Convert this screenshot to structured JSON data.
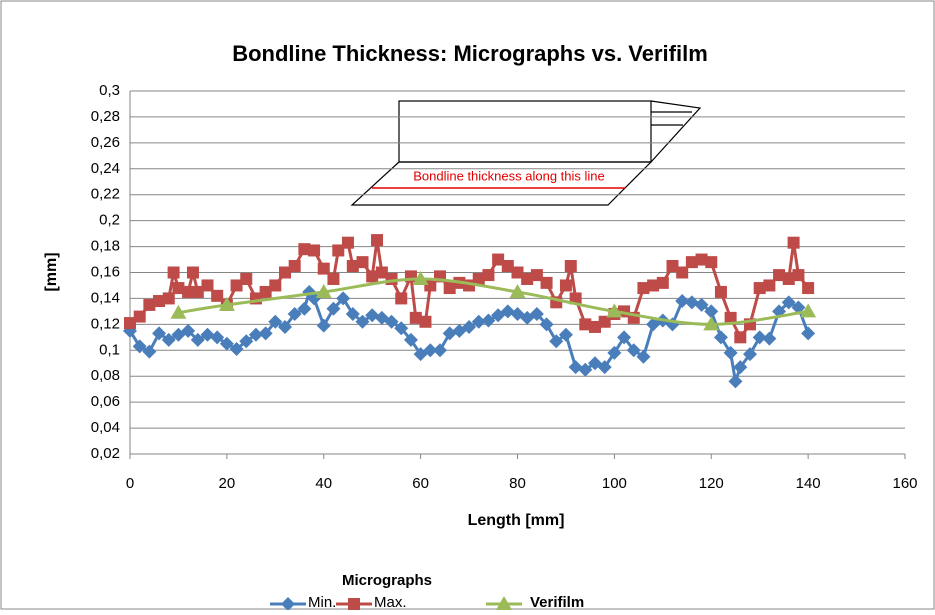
{
  "chart_data": {
    "type": "line",
    "title": "Bondline Thickness: Micrographs vs. Verifilm",
    "x_label": "Length [mm]",
    "y_label": "[mm]",
    "annotation": "Bondline thickness along this line",
    "legend_title": "Micrographs",
    "xlim": [
      0,
      160
    ],
    "xticks": [
      0,
      20,
      40,
      60,
      80,
      100,
      120,
      140,
      160
    ],
    "ylim": [
      0.02,
      0.3
    ],
    "yticks": [
      {
        "value": 0.02,
        "label": "0,02"
      },
      {
        "value": 0.04,
        "label": "0,04"
      },
      {
        "value": 0.06,
        "label": "0,06"
      },
      {
        "value": 0.08,
        "label": "0,08"
      },
      {
        "value": 0.1,
        "label": "0,1"
      },
      {
        "value": 0.12,
        "label": "0,12"
      },
      {
        "value": 0.14,
        "label": "0,14"
      },
      {
        "value": 0.16,
        "label": "0,16"
      },
      {
        "value": 0.18,
        "label": "0,18"
      },
      {
        "value": 0.2,
        "label": "0,2"
      },
      {
        "value": 0.22,
        "label": "0,22"
      },
      {
        "value": 0.24,
        "label": "0,24"
      },
      {
        "value": 0.26,
        "label": "0,26"
      },
      {
        "value": 0.28,
        "label": "0,28"
      },
      {
        "value": 0.3,
        "label": "0,3"
      }
    ],
    "grid": true,
    "series": [
      {
        "name": "Min.",
        "color": "#4a7ebb",
        "marker": "diamond",
        "smooth": false,
        "x": [
          0,
          2,
          4,
          6,
          8,
          10,
          12,
          14,
          16,
          18,
          20,
          22,
          24,
          26,
          28,
          30,
          32,
          34,
          36,
          37,
          38,
          40,
          42,
          44,
          46,
          48,
          50,
          52,
          54,
          56,
          58,
          60,
          62,
          64,
          66,
          68,
          70,
          72,
          74,
          76,
          78,
          80,
          82,
          84,
          86,
          88,
          90,
          92,
          94,
          96,
          98,
          100,
          102,
          104,
          106,
          108,
          110,
          112,
          114,
          116,
          118,
          120,
          122,
          124,
          125,
          126,
          128,
          130,
          132,
          134,
          136,
          138,
          140
        ],
        "values": [
          0.115,
          0.103,
          0.099,
          0.113,
          0.108,
          0.112,
          0.115,
          0.108,
          0.112,
          0.11,
          0.105,
          0.101,
          0.107,
          0.112,
          0.113,
          0.122,
          0.118,
          0.128,
          0.132,
          0.145,
          0.14,
          0.119,
          0.132,
          0.14,
          0.128,
          0.122,
          0.127,
          0.125,
          0.122,
          0.117,
          0.108,
          0.097,
          0.1,
          0.1,
          0.113,
          0.115,
          0.118,
          0.122,
          0.123,
          0.127,
          0.13,
          0.128,
          0.125,
          0.128,
          0.12,
          0.107,
          0.112,
          0.087,
          0.085,
          0.09,
          0.087,
          0.098,
          0.11,
          0.1,
          0.095,
          0.12,
          0.123,
          0.12,
          0.138,
          0.137,
          0.135,
          0.13,
          0.11,
          0.098,
          0.076,
          0.087,
          0.097,
          0.11,
          0.109,
          0.13,
          0.137,
          0.133,
          0.113
        ]
      },
      {
        "name": "Max.",
        "color": "#be4b48",
        "marker": "square",
        "smooth": false,
        "x": [
          0,
          2,
          4,
          6,
          8,
          9,
          10,
          12,
          13,
          14,
          16,
          18,
          20,
          22,
          24,
          26,
          28,
          30,
          32,
          34,
          36,
          38,
          40,
          42,
          43,
          45,
          46,
          48,
          50,
          51,
          52,
          54,
          56,
          58,
          59,
          61,
          62,
          64,
          66,
          68,
          70,
          72,
          74,
          76,
          78,
          80,
          82,
          84,
          86,
          88,
          90,
          91,
          92,
          94,
          96,
          98,
          100,
          102,
          104,
          106,
          108,
          110,
          112,
          114,
          116,
          118,
          120,
          122,
          124,
          126,
          128,
          130,
          132,
          134,
          136,
          137,
          138,
          140
        ],
        "values": [
          0.121,
          0.126,
          0.135,
          0.138,
          0.14,
          0.16,
          0.148,
          0.145,
          0.16,
          0.145,
          0.15,
          0.142,
          0.135,
          0.15,
          0.155,
          0.14,
          0.145,
          0.15,
          0.16,
          0.165,
          0.178,
          0.177,
          0.163,
          0.155,
          0.177,
          0.183,
          0.165,
          0.168,
          0.157,
          0.185,
          0.16,
          0.155,
          0.14,
          0.157,
          0.125,
          0.122,
          0.15,
          0.157,
          0.148,
          0.152,
          0.15,
          0.155,
          0.158,
          0.17,
          0.165,
          0.16,
          0.155,
          0.158,
          0.152,
          0.137,
          0.15,
          0.165,
          0.14,
          0.12,
          0.118,
          0.122,
          0.128,
          0.13,
          0.125,
          0.148,
          0.15,
          0.152,
          0.165,
          0.16,
          0.168,
          0.17,
          0.168,
          0.145,
          0.125,
          0.11,
          0.12,
          0.148,
          0.15,
          0.158,
          0.155,
          0.183,
          0.158,
          0.148
        ]
      },
      {
        "name": "Verifilm",
        "color": "#9bbb59",
        "marker": "triangle",
        "smooth": true,
        "x": [
          10,
          20,
          40,
          60,
          80,
          100,
          120,
          140
        ],
        "values": [
          0.129,
          0.135,
          0.145,
          0.155,
          0.145,
          0.13,
          0.12,
          0.13
        ]
      }
    ]
  }
}
